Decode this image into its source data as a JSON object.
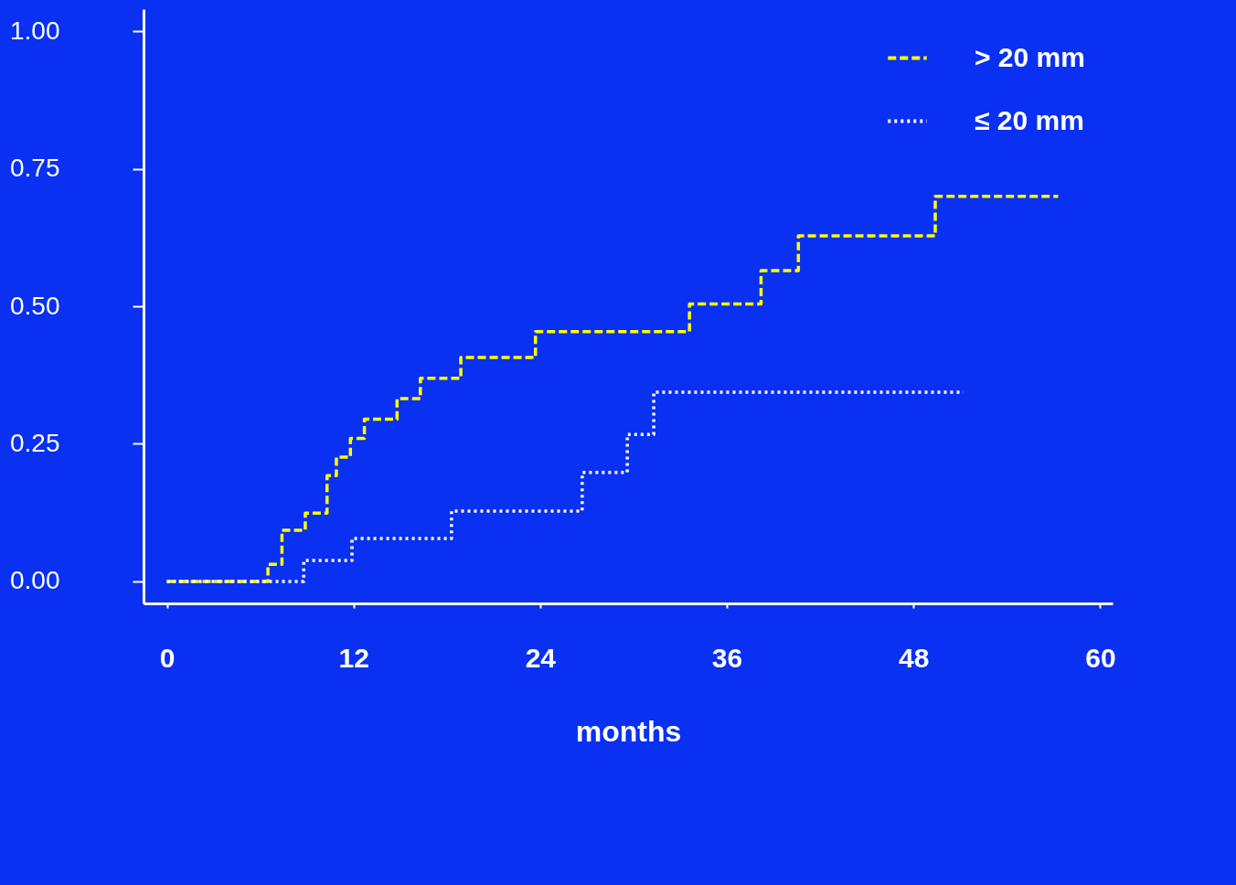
{
  "chart_data": {
    "type": "step",
    "xlabel": "months",
    "xlim": [
      -1.5,
      60.8
    ],
    "ylim": [
      -0.04,
      1.04
    ],
    "xticks": [
      0,
      12,
      24,
      36,
      48,
      60
    ],
    "yticks": [
      {
        "value": 0,
        "label": "0.00"
      },
      {
        "value": 0.25,
        "label": "0.25"
      },
      {
        "value": 0.5,
        "label": "0.50"
      },
      {
        "value": 0.75,
        "label": "0.75"
      },
      {
        "value": 1,
        "label": "1.00"
      }
    ],
    "grid": false,
    "legend": "top right",
    "marker": "none",
    "series": [
      {
        "name": "> 20 mm",
        "color": "#ffff00",
        "line_style": "dashed",
        "x": [
          0,
          6.5,
          7.4,
          8.9,
          10.3,
          10.9,
          11.8,
          12.7,
          14.8,
          16.3,
          18.9,
          23.7,
          33.6,
          38.2,
          40.6,
          49.4,
          57.3
        ],
        "values": [
          0,
          0.031,
          0.093,
          0.124,
          0.192,
          0.226,
          0.26,
          0.295,
          0.332,
          0.369,
          0.407,
          0.454,
          0.504,
          0.565,
          0.628,
          0.7,
          0.7
        ]
      },
      {
        "name": "≤ 20 mm",
        "color": "#ffffff",
        "line_style": "dotted",
        "x": [
          0,
          8.8,
          11.9,
          18.3,
          26.7,
          29.6,
          31.3,
          51.2
        ],
        "values": [
          0,
          0.038,
          0.078,
          0.128,
          0.198,
          0.267,
          0.344,
          0.344
        ]
      }
    ]
  }
}
